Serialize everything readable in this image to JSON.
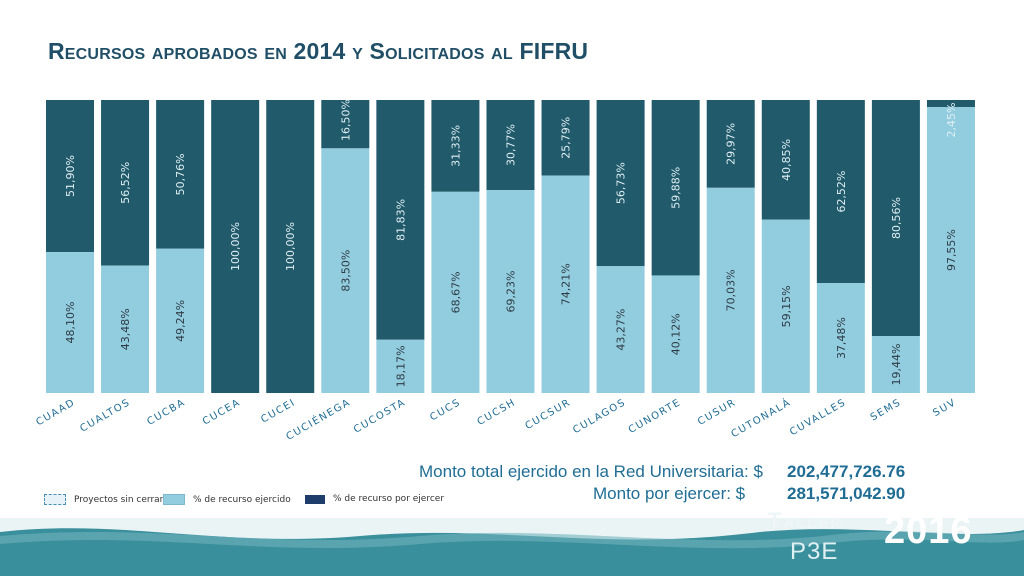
{
  "title": "Recursos aprobados en 2014 y Solicitados al FIFRU",
  "colors": {
    "ejercido": "#92cddf",
    "por_ejercer": "#215a6a",
    "title": "#1f4e66",
    "footer": "#3a8f9c"
  },
  "summary": {
    "total_label": "Monto total ejercido en la Red Universitaria: $",
    "total_value": "202,477,726.76",
    "pending_label": "Monto por ejercer: $",
    "pending_value": "281,571,042.90"
  },
  "legend": {
    "items": [
      {
        "label": "Proyectos sin cerrar",
        "style": "dashed"
      },
      {
        "label": "% de recurso ejercido",
        "style": "light"
      },
      {
        "label": "% de recurso por ejercer",
        "style": "dark"
      }
    ]
  },
  "brand": {
    "line1": "Taller",
    "line2": "P3E",
    "year": "2016"
  },
  "chart_data": {
    "type": "bar",
    "stacked": true,
    "percent_stacked": true,
    "categories": [
      "CUAAD",
      "CUALTOS",
      "CUCBA",
      "CUCEA",
      "CUCEI",
      "CUCIÉNEGA",
      "CUCOSTA",
      "CUCS",
      "CUCSH",
      "CUCSUR",
      "CULAGOS",
      "CUNORTE",
      "CUSUR",
      "CUTONALÁ",
      "CUVALLES",
      "SEMS",
      "SUV"
    ],
    "series": [
      {
        "name": "% de recurso ejercido",
        "values": [
          48.1,
          43.48,
          49.24,
          0,
          0,
          83.5,
          18.17,
          68.67,
          69.23,
          74.21,
          43.27,
          40.12,
          70.03,
          59.15,
          37.48,
          19.44,
          97.55
        ],
        "labels": [
          "48,10%",
          "43,48%",
          "49,24%",
          "",
          "",
          "83,50%",
          "18,17%",
          "68,67%",
          "69,23%",
          "74,21%",
          "43,27%",
          "40,12%",
          "70,03%",
          "59,15%",
          "37,48%",
          "19,44%",
          "97,55%"
        ]
      },
      {
        "name": "% de recurso por ejercer",
        "values": [
          51.9,
          56.52,
          50.76,
          100,
          100,
          16.5,
          81.83,
          31.33,
          30.77,
          25.79,
          56.73,
          59.88,
          29.97,
          40.85,
          62.52,
          80.56,
          2.45
        ],
        "labels": [
          "51,90%",
          "56,52%",
          "50,76%",
          "100,00%",
          "100,00%",
          "16,50%",
          "81,83%",
          "31,33%",
          "30,77%",
          "25,79%",
          "56,73%",
          "59,88%",
          "29,97%",
          "40,85%",
          "62,52%",
          "80,56%",
          "2,45%"
        ]
      }
    ],
    "ylim": [
      0,
      100
    ],
    "legend_position": "bottom-left"
  }
}
